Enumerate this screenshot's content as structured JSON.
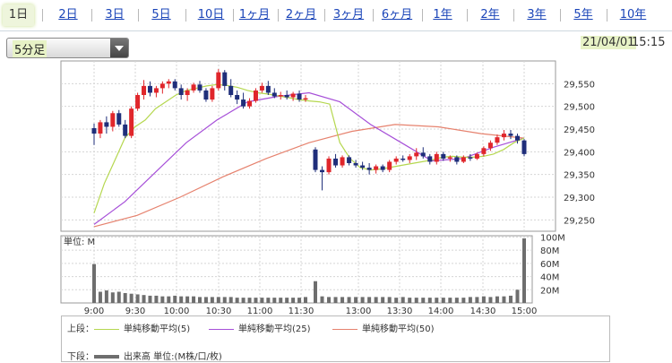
{
  "tabs": [
    {
      "label": "1日",
      "active": true
    },
    {
      "label": "2日"
    },
    {
      "label": "3日"
    },
    {
      "label": "5日"
    },
    {
      "label": "10日"
    },
    {
      "label": "1ヶ月"
    },
    {
      "label": "2ヶ月"
    },
    {
      "label": "3ヶ月"
    },
    {
      "label": "6ヶ月"
    },
    {
      "label": "1年"
    },
    {
      "label": "2年"
    },
    {
      "label": "3年"
    },
    {
      "label": "5年"
    },
    {
      "label": "10年"
    }
  ],
  "interval_select": {
    "value": "5分足"
  },
  "timestamp": {
    "date": "21/04/01",
    "time": "15:15"
  },
  "colors": {
    "up": "#e0262b",
    "down": "#1f2e7a",
    "ma5": "#b5d74f",
    "ma25": "#a64fd8",
    "ma50": "#e6826e",
    "volume": "#6e6e6e"
  },
  "chart_data": {
    "type": "candlestick",
    "price_axis": {
      "ticks": [
        29250,
        29300,
        29350,
        29400,
        29450,
        29500,
        29550
      ],
      "ylim": [
        29225,
        29600
      ]
    },
    "volume_axis": {
      "ticks": [
        "20M",
        "40M",
        "60M",
        "80M",
        "100M"
      ],
      "tick_values": [
        20,
        40,
        60,
        80,
        100
      ],
      "ylim": [
        0,
        102
      ],
      "label": "単位: M"
    },
    "x_ticks": [
      "9:00",
      "9:30",
      "10:00",
      "10:30",
      "11:00",
      "11:30",
      "13:00",
      "13:30",
      "14:00",
      "14:30",
      "15:00"
    ],
    "morning_candles": [
      {
        "o": 29452,
        "h": 29462,
        "l": 29415,
        "c": 29440
      },
      {
        "o": 29440,
        "h": 29470,
        "l": 29430,
        "c": 29465
      },
      {
        "o": 29465,
        "h": 29478,
        "l": 29440,
        "c": 29455
      },
      {
        "o": 29455,
        "h": 29490,
        "l": 29445,
        "c": 29485
      },
      {
        "o": 29485,
        "h": 29492,
        "l": 29455,
        "c": 29460
      },
      {
        "o": 29460,
        "h": 29470,
        "l": 29430,
        "c": 29435
      },
      {
        "o": 29435,
        "h": 29500,
        "l": 29430,
        "c": 29495
      },
      {
        "o": 29495,
        "h": 29530,
        "l": 29490,
        "c": 29525
      },
      {
        "o": 29525,
        "h": 29558,
        "l": 29515,
        "c": 29545
      },
      {
        "o": 29545,
        "h": 29555,
        "l": 29522,
        "c": 29530
      },
      {
        "o": 29530,
        "h": 29545,
        "l": 29520,
        "c": 29540
      },
      {
        "o": 29540,
        "h": 29555,
        "l": 29528,
        "c": 29550
      },
      {
        "o": 29550,
        "h": 29560,
        "l": 29540,
        "c": 29555
      },
      {
        "o": 29555,
        "h": 29560,
        "l": 29535,
        "c": 29540
      },
      {
        "o": 29540,
        "h": 29548,
        "l": 29515,
        "c": 29525
      },
      {
        "o": 29525,
        "h": 29540,
        "l": 29512,
        "c": 29535
      },
      {
        "o": 29535,
        "h": 29552,
        "l": 29530,
        "c": 29548
      },
      {
        "o": 29548,
        "h": 29556,
        "l": 29530,
        "c": 29535
      },
      {
        "o": 29535,
        "h": 29540,
        "l": 29510,
        "c": 29515
      },
      {
        "o": 29515,
        "h": 29545,
        "l": 29510,
        "c": 29540
      },
      {
        "o": 29540,
        "h": 29582,
        "l": 29535,
        "c": 29575
      },
      {
        "o": 29575,
        "h": 29580,
        "l": 29535,
        "c": 29545
      },
      {
        "o": 29545,
        "h": 29560,
        "l": 29520,
        "c": 29525
      },
      {
        "o": 29525,
        "h": 29535,
        "l": 29505,
        "c": 29515
      },
      {
        "o": 29515,
        "h": 29530,
        "l": 29495,
        "c": 29500
      },
      {
        "o": 29500,
        "h": 29518,
        "l": 29495,
        "c": 29512
      },
      {
        "o": 29512,
        "h": 29540,
        "l": 29508,
        "c": 29535
      },
      {
        "o": 29535,
        "h": 29552,
        "l": 29530,
        "c": 29545
      },
      {
        "o": 29545,
        "h": 29556,
        "l": 29525,
        "c": 29530
      },
      {
        "o": 29530,
        "h": 29540,
        "l": 29518,
        "c": 29522
      },
      {
        "o": 29522,
        "h": 29532,
        "l": 29515,
        "c": 29525
      },
      {
        "o": 29525,
        "h": 29535,
        "l": 29515,
        "c": 29520
      },
      {
        "o": 29520,
        "h": 29532,
        "l": 29512,
        "c": 29528
      },
      {
        "o": 29528,
        "h": 29535,
        "l": 29510,
        "c": 29515
      },
      {
        "o": 29515,
        "h": 29525,
        "l": 29510,
        "c": 29518
      }
    ],
    "afternoon_candles": [
      {
        "o": 29405,
        "h": 29410,
        "l": 29355,
        "c": 29360
      },
      {
        "o": 29360,
        "h": 29368,
        "l": 29315,
        "c": 29355
      },
      {
        "o": 29355,
        "h": 29390,
        "l": 29350,
        "c": 29385
      },
      {
        "o": 29385,
        "h": 29395,
        "l": 29365,
        "c": 29370
      },
      {
        "o": 29370,
        "h": 29392,
        "l": 29365,
        "c": 29388
      },
      {
        "o": 29388,
        "h": 29392,
        "l": 29370,
        "c": 29375
      },
      {
        "o": 29375,
        "h": 29382,
        "l": 29365,
        "c": 29370
      },
      {
        "o": 29370,
        "h": 29378,
        "l": 29360,
        "c": 29365
      },
      {
        "o": 29365,
        "h": 29375,
        "l": 29350,
        "c": 29360
      },
      {
        "o": 29360,
        "h": 29372,
        "l": 29352,
        "c": 29368
      },
      {
        "o": 29368,
        "h": 29372,
        "l": 29355,
        "c": 29360
      },
      {
        "o": 29360,
        "h": 29382,
        "l": 29355,
        "c": 29378
      },
      {
        "o": 29378,
        "h": 29390,
        "l": 29372,
        "c": 29385
      },
      {
        "o": 29385,
        "h": 29392,
        "l": 29378,
        "c": 29382
      },
      {
        "o": 29382,
        "h": 29395,
        "l": 29375,
        "c": 29390
      },
      {
        "o": 29390,
        "h": 29408,
        "l": 29382,
        "c": 29398
      },
      {
        "o": 29398,
        "h": 29410,
        "l": 29385,
        "c": 29390
      },
      {
        "o": 29390,
        "h": 29395,
        "l": 29372,
        "c": 29378
      },
      {
        "o": 29378,
        "h": 29400,
        "l": 29372,
        "c": 29395
      },
      {
        "o": 29395,
        "h": 29400,
        "l": 29380,
        "c": 29385
      },
      {
        "o": 29385,
        "h": 29392,
        "l": 29378,
        "c": 29388
      },
      {
        "o": 29388,
        "h": 29392,
        "l": 29372,
        "c": 29378
      },
      {
        "o": 29378,
        "h": 29392,
        "l": 29375,
        "c": 29388
      },
      {
        "o": 29388,
        "h": 29395,
        "l": 29380,
        "c": 29385
      },
      {
        "o": 29385,
        "h": 29398,
        "l": 29382,
        "c": 29395
      },
      {
        "o": 29395,
        "h": 29412,
        "l": 29390,
        "c": 29408
      },
      {
        "o": 29408,
        "h": 29425,
        "l": 29402,
        "c": 29420
      },
      {
        "o": 29420,
        "h": 29438,
        "l": 29415,
        "c": 29432
      },
      {
        "o": 29432,
        "h": 29448,
        "l": 29425,
        "c": 29440
      },
      {
        "o": 29440,
        "h": 29448,
        "l": 29428,
        "c": 29435
      },
      {
        "o": 29435,
        "h": 29440,
        "l": 29418,
        "c": 29425
      },
      {
        "o": 29425,
        "h": 29428,
        "l": 29390,
        "c": 29395
      }
    ],
    "ma5": [
      29265,
      29330,
      29380,
      29430,
      29455,
      29470,
      29495,
      29510,
      29525,
      29535,
      29540,
      29545,
      29548,
      29546,
      29542,
      29535,
      29530,
      29527,
      29523,
      29519,
      29515,
      29512,
      29510,
      29505,
      29420,
      29385,
      29365,
      29360,
      29362,
      29366,
      29370,
      29374,
      29378,
      29382,
      29388,
      29390,
      29388,
      29388,
      29390,
      29395,
      29405,
      29420,
      29430
    ],
    "ma25": [
      29240,
      29290,
      29355,
      29420,
      29470,
      29510,
      29522,
      29530,
      29510,
      29460,
      29420,
      29380,
      29385,
      29410,
      29430
    ],
    "ma50": [
      29235,
      29260,
      29300,
      29345,
      29385,
      29420,
      29445,
      29460,
      29455,
      29440,
      29430
    ],
    "volume_morning": [
      59,
      17,
      19,
      16,
      17,
      15,
      14,
      13,
      12,
      11,
      11,
      10,
      10,
      11,
      10,
      10,
      10,
      9,
      9,
      9,
      9,
      9,
      9,
      8,
      8,
      8,
      8,
      8,
      8,
      8,
      8,
      8,
      8,
      8,
      9
    ],
    "volume_afternoon": [
      33,
      10,
      9,
      9,
      9,
      9,
      9,
      9,
      9,
      9,
      9,
      9,
      8,
      9,
      8,
      8,
      8,
      8,
      8,
      8,
      8,
      8,
      8,
      9,
      9,
      10,
      9,
      10,
      10,
      11,
      20,
      98
    ]
  },
  "legend": {
    "upper_label": "上段：",
    "lower_label": "下段：",
    "items": [
      {
        "label": "単純移動平均(5)"
      },
      {
        "label": "単純移動平均(25)"
      },
      {
        "label": "単純移動平均(50)"
      }
    ],
    "volume_item": "出来高 単位:(M株/口/枚)"
  }
}
